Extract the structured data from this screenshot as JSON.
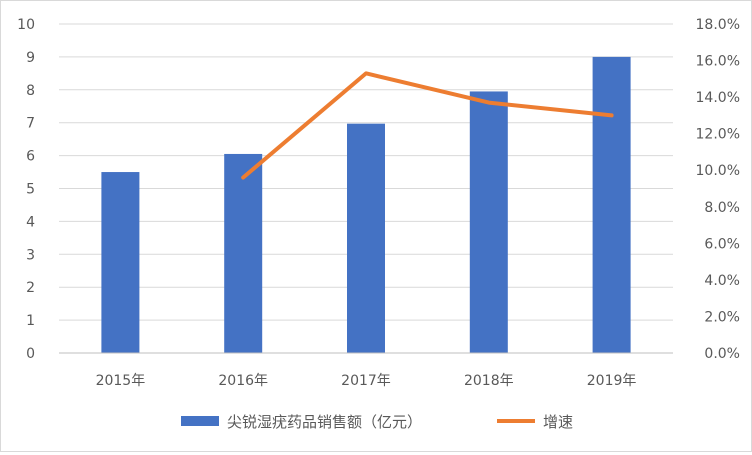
{
  "chart_data": {
    "type": "bar",
    "categories": [
      "2015年",
      "2016年",
      "2017年",
      "2018年",
      "2019年"
    ],
    "series": [
      {
        "name": "尖锐湿疣药品销售额（亿元）",
        "type": "bar",
        "axis": "left",
        "color": "#4472C4",
        "values": [
          5.5,
          6.05,
          6.97,
          7.95,
          9.0
        ]
      },
      {
        "name": "增速",
        "type": "line",
        "axis": "right",
        "color": "#ED7D31",
        "values": [
          null,
          0.096,
          0.153,
          0.137,
          0.13
        ]
      }
    ],
    "y_left": {
      "min": 0,
      "max": 10,
      "step": 1,
      "ticks": [
        "0",
        "1",
        "2",
        "3",
        "4",
        "5",
        "6",
        "7",
        "8",
        "9",
        "10"
      ]
    },
    "y_right": {
      "min": 0,
      "max": 0.18,
      "step": 0.02,
      "ticks": [
        "0.0%",
        "2.0%",
        "4.0%",
        "6.0%",
        "8.0%",
        "10.0%",
        "12.0%",
        "14.0%",
        "16.0%",
        "18.0%"
      ]
    },
    "grid": true,
    "legend": "bottom"
  }
}
